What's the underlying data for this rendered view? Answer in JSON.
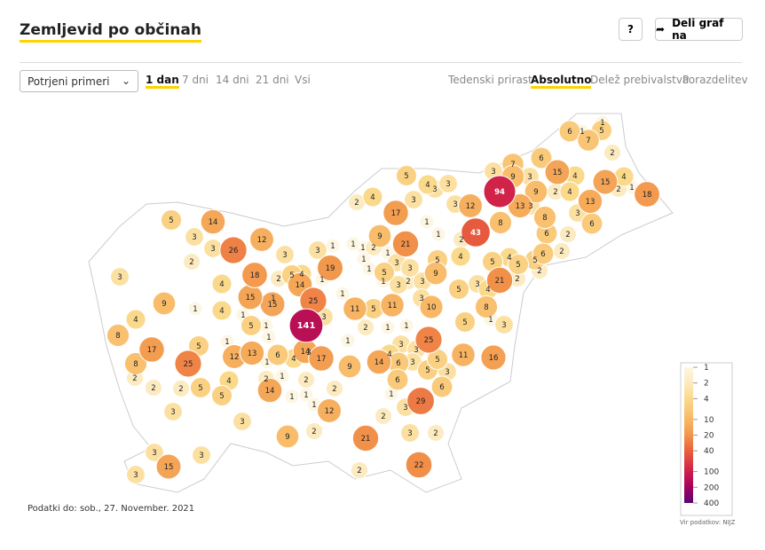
{
  "header": {
    "title": "Zemljevid po občinah",
    "help": "?",
    "share": "Deli graf na"
  },
  "controls": {
    "select": "Potrjeni primeri",
    "ranges": [
      "1 dan",
      "7 dni",
      "14 dni",
      "21 dni",
      "Vsi"
    ],
    "active_range": 0,
    "modes": [
      "Tedenski prirast",
      "Absolutno",
      "Delež prebivalstva",
      "Porazdelitev"
    ],
    "active_mode": 1
  },
  "map": {
    "values": [
      6,
      1,
      1,
      5,
      7,
      2,
      6,
      7,
      3,
      9,
      3,
      15,
      4,
      9,
      15,
      2,
      4,
      1,
      18,
      94,
      2,
      4,
      13,
      13,
      3,
      8,
      3,
      6,
      2,
      6,
      6,
      2,
      5,
      8,
      43,
      12,
      3,
      3,
      3,
      4,
      5,
      4,
      17,
      2,
      3,
      1,
      2,
      1,
      21,
      4,
      5,
      4,
      5,
      21,
      2,
      2,
      4,
      3,
      5,
      5,
      9,
      3,
      3,
      10,
      8,
      1,
      3,
      5,
      25,
      1,
      3,
      3,
      4,
      14,
      6,
      3,
      5,
      5,
      3,
      11,
      16,
      29,
      6,
      6,
      1,
      2,
      3,
      2,
      3,
      21,
      22,
      2,
      9,
      2,
      1,
      1,
      1,
      3,
      1,
      5,
      3,
      2,
      3,
      1,
      1,
      1,
      3,
      19,
      4,
      1,
      14,
      1,
      25,
      3,
      11,
      5,
      11,
      1,
      2,
      141,
      1,
      3,
      4,
      14,
      17,
      9,
      1,
      15,
      5,
      3,
      2,
      5,
      14,
      3,
      3,
      26,
      12,
      18,
      4,
      2,
      3,
      9,
      1,
      4,
      15,
      1,
      5,
      1,
      1,
      4,
      8,
      17,
      5,
      1,
      12,
      13,
      6,
      8,
      2,
      2,
      25,
      2,
      5,
      5,
      1,
      2,
      1,
      14,
      2,
      1,
      1,
      2,
      1,
      12,
      2,
      9,
      3,
      3,
      4,
      3,
      3,
      15,
      3
    ],
    "legend": {
      "ticks": [
        1,
        2,
        4,
        10,
        20,
        40,
        100,
        200,
        400
      ],
      "colors": [
        "#fdf6e3",
        "#fcebc0",
        "#fbd98b",
        "#f8b866",
        "#f2954a",
        "#e8603e",
        "#cf1e4a",
        "#a3005f",
        "#5a0670"
      ],
      "log": true
    },
    "updated": "Podatki do: sob., 27. November. 2021",
    "source": "Vir podatkov: NIJZ"
  }
}
